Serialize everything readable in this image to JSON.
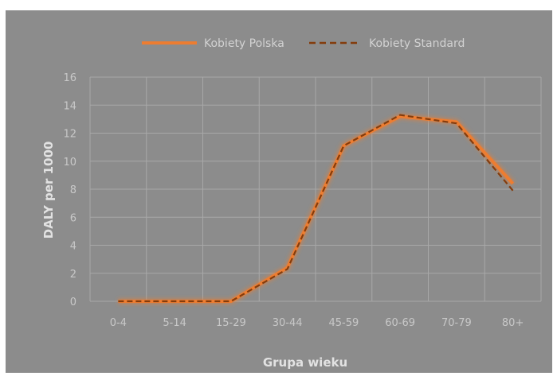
{
  "chart_data": {
    "type": "line",
    "categories": [
      "0-4",
      "5-14",
      "15-29",
      "30-44",
      "45-59",
      "60-69",
      "70-79",
      "80+"
    ],
    "series": [
      {
        "name": "Kobiety Polska",
        "values": [
          0,
          0,
          0,
          2.4,
          11.1,
          13.2,
          12.8,
          8.4
        ],
        "color": "#ed7d31",
        "style": "solid"
      },
      {
        "name": "Kobiety Standard",
        "values": [
          0,
          0,
          0,
          2.3,
          11.1,
          13.3,
          12.7,
          7.9
        ],
        "color": "#843c0c",
        "style": "dashed"
      }
    ],
    "xlabel": "Grupa wieku",
    "ylabel": "DALY per 1000",
    "ylim": [
      0,
      16
    ],
    "yticks": [
      0,
      2,
      4,
      6,
      8,
      10,
      12,
      14,
      16
    ],
    "grid": true,
    "legend_position": "top"
  }
}
